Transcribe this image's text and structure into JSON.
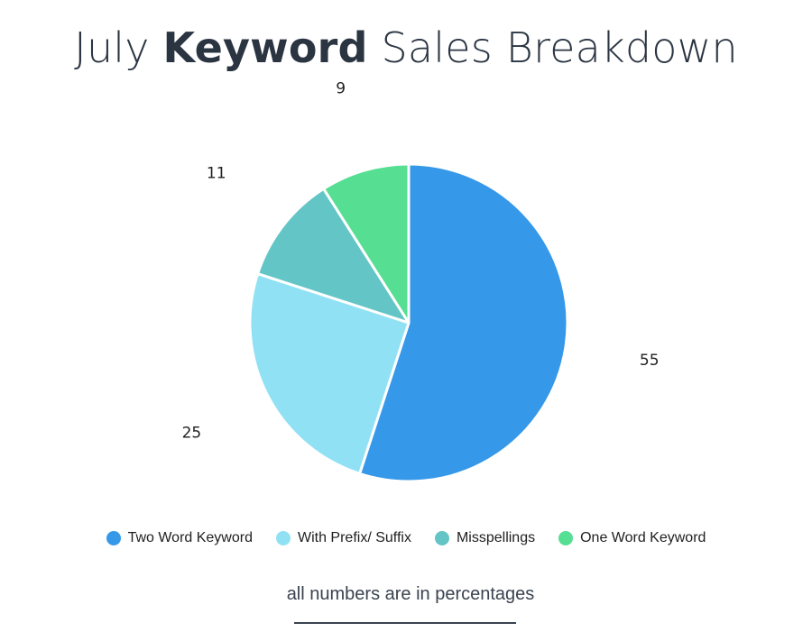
{
  "title": {
    "prefix": "July",
    "emphasis": "Keyword",
    "suffix": "Sales Breakdown"
  },
  "chart_data": {
    "type": "pie",
    "start_angle_deg": 0,
    "direction": "clockwise",
    "slices": [
      {
        "name": "Two Word Keyword",
        "value": 55,
        "label": "55",
        "color": "#3698e8"
      },
      {
        "name": "With Prefix/ Suffix",
        "value": 25,
        "label": "25",
        "color": "#91e1f4"
      },
      {
        "name": "Misspellings",
        "value": 11,
        "label": "11",
        "color": "#64c5c6"
      },
      {
        "name": "One Word Keyword",
        "value": 9,
        "label": "9",
        "color": "#56de92"
      }
    ],
    "legend_position": "bottom"
  },
  "footnote": "all numbers are in percentages"
}
